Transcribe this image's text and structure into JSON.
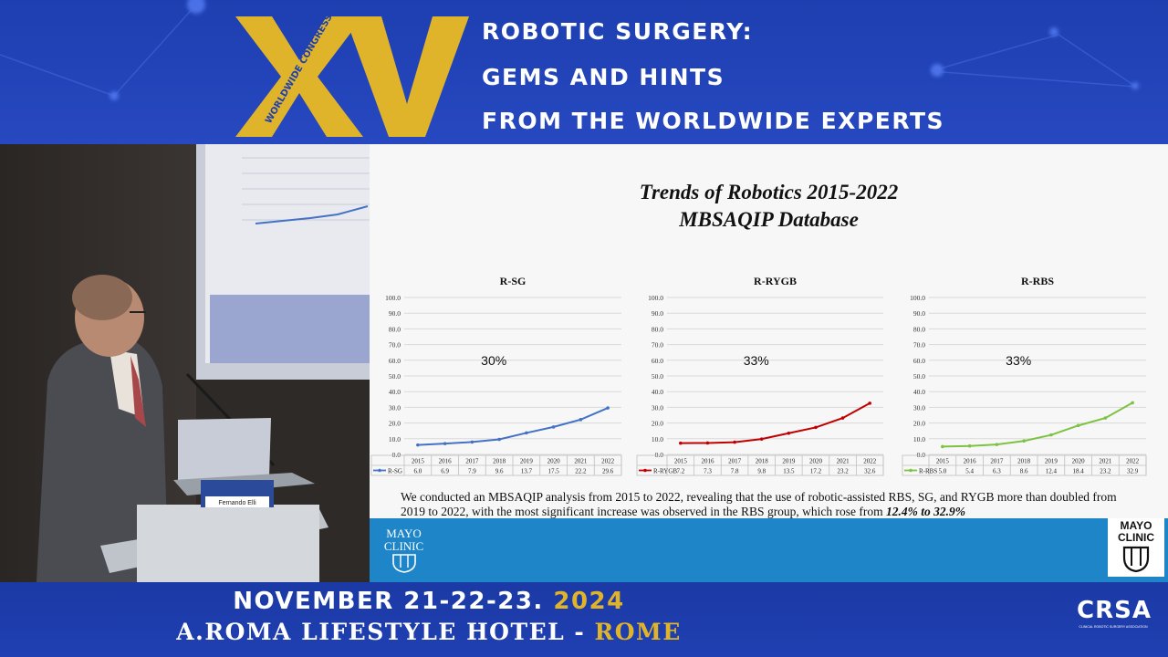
{
  "banner": {
    "logo_roman": "XV",
    "logo_caption": "WORLDWIDE CONGRESS",
    "headline_lines": [
      "ROBOTIC SURGERY:",
      "GEMS AND HINTS",
      "FROM THE WORLDWIDE EXPERTS"
    ]
  },
  "speaker": {
    "name_tag": "Fernando Elli"
  },
  "slide": {
    "title_line1": "Trends of Robotics 2015-2022",
    "title_line2": "MBSAQIP Database",
    "description_main": "We conducted an MBSAQIP analysis from 2015 to 2022, revealing that the use of robotic-assisted RBS, SG, and RYGB more than doubled from 2019 to 2022, with the most significant increase was observed in the RBS group, which rose from ",
    "description_highlight": "12.4% to 32.9%",
    "footer_brand": "MAYO CLINIC",
    "brand_line1": "MAYO",
    "brand_line2": "CLINIC"
  },
  "chart_data": [
    {
      "type": "line",
      "title": "R-SG",
      "annotation": "30%",
      "x": [
        "2015",
        "2016",
        "2017",
        "2018",
        "2019",
        "2020",
        "2021",
        "2022"
      ],
      "series": [
        {
          "name": "R-SG",
          "values": [
            6.0,
            6.9,
            7.9,
            9.6,
            13.7,
            17.5,
            22.2,
            29.6
          ],
          "labels": [
            "6.0",
            "6.9",
            "7.9",
            "9.6",
            "13.7",
            "17.5",
            "22.2",
            "29.6"
          ],
          "color": "#4472c4"
        }
      ],
      "ylim": [
        0,
        100
      ],
      "yticks": [
        "0.0",
        "10.0",
        "20.0",
        "30.0",
        "40.0",
        "50.0",
        "60.0",
        "70.0",
        "80.0",
        "90.0",
        "100.0"
      ],
      "grid": true,
      "legend": "data-table"
    },
    {
      "type": "line",
      "title": "R-RYGB",
      "annotation": "33%",
      "x": [
        "2015",
        "2016",
        "2017",
        "2018",
        "2019",
        "2020",
        "2021",
        "2022"
      ],
      "series": [
        {
          "name": "R-RYGB",
          "values": [
            7.2,
            7.3,
            7.8,
            9.8,
            13.5,
            17.2,
            23.2,
            32.6
          ],
          "labels": [
            "7.2",
            "7.3",
            "7.8",
            "9.8",
            "13.5",
            "17.2",
            "23.2",
            "32.6"
          ],
          "color": "#c00000"
        }
      ],
      "ylim": [
        0,
        100
      ],
      "yticks": [
        "0.0",
        "10.0",
        "20.0",
        "30.0",
        "40.0",
        "50.0",
        "60.0",
        "70.0",
        "80.0",
        "90.0",
        "100.0"
      ],
      "grid": true,
      "legend": "data-table"
    },
    {
      "type": "line",
      "title": "R-RBS",
      "annotation": "33%",
      "x": [
        "2015",
        "2016",
        "2017",
        "2018",
        "2019",
        "2020",
        "2021",
        "2022"
      ],
      "series": [
        {
          "name": "R-RBS",
          "values": [
            5.0,
            5.4,
            6.3,
            8.6,
            12.4,
            18.4,
            23.2,
            32.9
          ],
          "labels": [
            "5.0",
            "5.4",
            "6.3",
            "8.6",
            "12.4",
            "18.4",
            "23.2",
            "32.9"
          ],
          "color": "#7dc242"
        }
      ],
      "ylim": [
        0,
        100
      ],
      "yticks": [
        "0.0",
        "10.0",
        "20.0",
        "30.0",
        "40.0",
        "50.0",
        "60.0",
        "70.0",
        "80.0",
        "90.0",
        "100.0"
      ],
      "grid": true,
      "legend": "data-table"
    }
  ],
  "footer": {
    "date_prefix": "NOVEMBER 21-22-23. ",
    "year": "2024",
    "venue_prefix": "A.ROMA LIFESTYLE HOTEL - ",
    "city": "ROME",
    "org_logo": "CRSA",
    "org_caption": "CLINICAL ROBOTIC SURGERY ASSOCIATION"
  },
  "colors": {
    "banner_blue": "#1d3fb0",
    "gold": "#e0b42a",
    "slide_footer_blue": "#1e86c8"
  }
}
